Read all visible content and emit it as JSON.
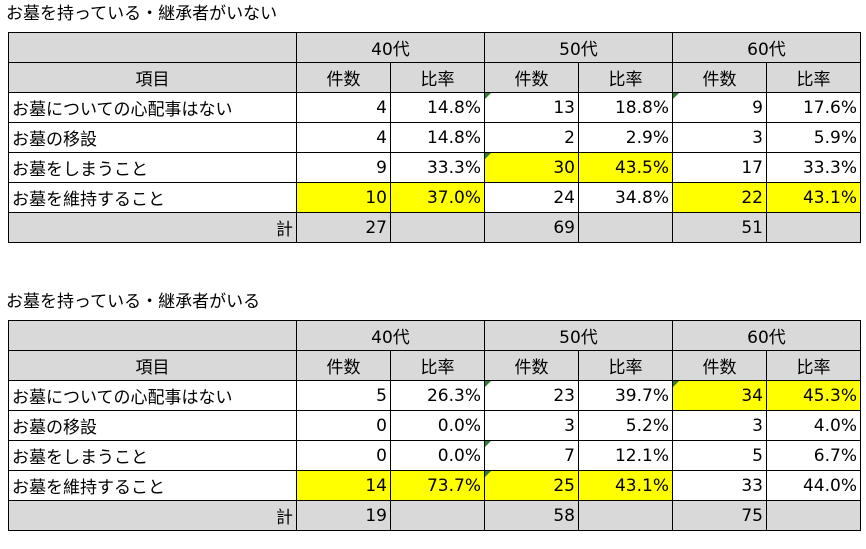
{
  "tables": [
    {
      "title": "お墓を持っている・継承者がいない",
      "age_groups": [
        "40代",
        "50代",
        "60代"
      ],
      "col_item": "項目",
      "col_count": "件数",
      "col_rate": "比率",
      "rows": [
        {
          "item": "お墓についての心配事はない",
          "c40": "4",
          "r40": "14.8%",
          "c50": "13",
          "r50": "18.8%",
          "c60": "9",
          "r60": "17.6%"
        },
        {
          "item": "お墓の移設",
          "c40": "4",
          "r40": "14.8%",
          "c50": "2",
          "r50": "2.9%",
          "c60": "3",
          "r60": "5.9%"
        },
        {
          "item": "お墓をしまうこと",
          "c40": "9",
          "r40": "33.3%",
          "c50": "30",
          "r50": "43.5%",
          "c60": "17",
          "r60": "33.3%"
        },
        {
          "item": "お墓を維持すること",
          "c40": "10",
          "r40": "37.0%",
          "c50": "24",
          "r50": "34.8%",
          "c60": "22",
          "r60": "43.1%"
        }
      ],
      "total_label": "計",
      "totals": {
        "c40": "27",
        "c50": "69",
        "c60": "51"
      }
    },
    {
      "title": "お墓を持っている・継承者がいる",
      "age_groups": [
        "40代",
        "50代",
        "60代"
      ],
      "col_item": "項目",
      "col_count": "件数",
      "col_rate": "比率",
      "rows": [
        {
          "item": "お墓についての心配事はない",
          "c40": "5",
          "r40": "26.3%",
          "c50": "23",
          "r50": "39.7%",
          "c60": "34",
          "r60": "45.3%"
        },
        {
          "item": "お墓の移設",
          "c40": "0",
          "r40": "0.0%",
          "c50": "3",
          "r50": "5.2%",
          "c60": "3",
          "r60": "4.0%"
        },
        {
          "item": "お墓をしまうこと",
          "c40": "0",
          "r40": "0.0%",
          "c50": "7",
          "r50": "12.1%",
          "c60": "5",
          "r60": "6.7%"
        },
        {
          "item": "お墓を維持すること",
          "c40": "14",
          "r40": "73.7%",
          "c50": "25",
          "r50": "43.1%",
          "c60": "33",
          "r60": "44.0%"
        }
      ],
      "total_label": "計",
      "totals": {
        "c40": "19",
        "c50": "58",
        "c60": "75"
      }
    }
  ],
  "highlight_color": "#ffff00",
  "header_fill_color": "#d9d9d9",
  "marker_color": "#2e7d32"
}
